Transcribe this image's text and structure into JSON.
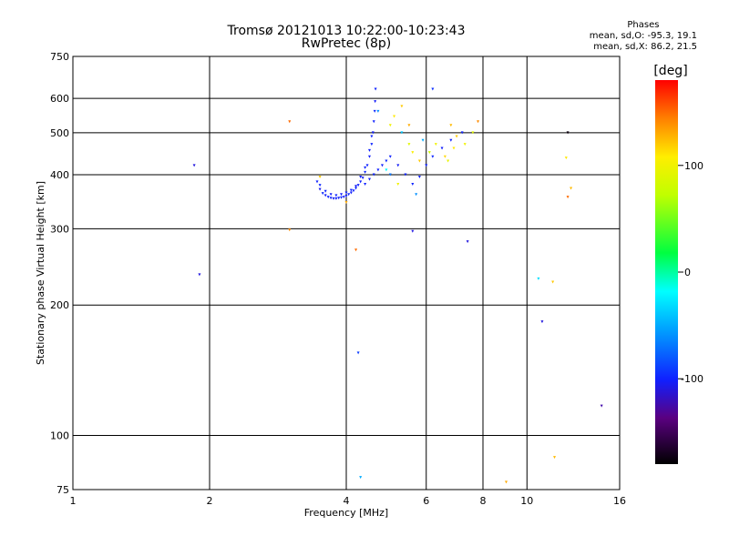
{
  "chart_data": {
    "type": "scatter",
    "title": "Tromsø 20121013 10:22:00-10:23:43",
    "subtitle": "RwPretec (8p)",
    "xlabel": "Frequency [MHz]",
    "ylabel": "Stationary phase Virtual Height [km]",
    "x_scale": "log",
    "y_scale": "log",
    "xlim": [
      1,
      16
    ],
    "ylim": [
      75,
      750
    ],
    "x_ticks": [
      1,
      2,
      4,
      6,
      8,
      10,
      16
    ],
    "y_ticks": [
      75,
      100,
      200,
      300,
      400,
      500,
      600,
      750
    ],
    "grid": true,
    "stats": {
      "heading": "Phases",
      "line_o": "mean, sd,O: -95.3, 19.1",
      "line_x": "mean, sd,X: 86.2, 21.5"
    },
    "colorbar": {
      "label": "[deg]",
      "ticks": [
        100,
        0,
        -100
      ],
      "range": [
        -180,
        180
      ]
    },
    "points": [
      {
        "x": 3.45,
        "y": 385,
        "p": -100
      },
      {
        "x": 3.5,
        "y": 370,
        "p": -105
      },
      {
        "x": 3.55,
        "y": 362,
        "p": -98
      },
      {
        "x": 3.6,
        "y": 358,
        "p": -102
      },
      {
        "x": 3.65,
        "y": 355,
        "p": -100
      },
      {
        "x": 3.7,
        "y": 353,
        "p": -99
      },
      {
        "x": 3.75,
        "y": 352,
        "p": -104
      },
      {
        "x": 3.8,
        "y": 352,
        "p": -101
      },
      {
        "x": 3.85,
        "y": 353,
        "p": -100
      },
      {
        "x": 3.9,
        "y": 354,
        "p": -97
      },
      {
        "x": 3.95,
        "y": 355,
        "p": -103
      },
      {
        "x": 4.0,
        "y": 357,
        "p": -100
      },
      {
        "x": 4.05,
        "y": 360,
        "p": -98
      },
      {
        "x": 4.1,
        "y": 363,
        "p": -102
      },
      {
        "x": 4.15,
        "y": 367,
        "p": -100
      },
      {
        "x": 4.2,
        "y": 372,
        "p": -99
      },
      {
        "x": 4.25,
        "y": 378,
        "p": -101
      },
      {
        "x": 4.3,
        "y": 385,
        "p": -100
      },
      {
        "x": 4.35,
        "y": 393,
        "p": -103
      },
      {
        "x": 4.4,
        "y": 405,
        "p": -98
      },
      {
        "x": 4.45,
        "y": 420,
        "p": -100
      },
      {
        "x": 4.5,
        "y": 440,
        "p": -102
      },
      {
        "x": 4.55,
        "y": 470,
        "p": -99
      },
      {
        "x": 4.58,
        "y": 500,
        "p": -100
      },
      {
        "x": 4.6,
        "y": 530,
        "p": -101
      },
      {
        "x": 4.62,
        "y": 560,
        "p": -98
      },
      {
        "x": 4.63,
        "y": 590,
        "p": -103
      },
      {
        "x": 4.64,
        "y": 630,
        "p": -100
      },
      {
        "x": 3.5,
        "y": 378,
        "p": -97
      },
      {
        "x": 3.6,
        "y": 366,
        "p": -100
      },
      {
        "x": 3.7,
        "y": 360,
        "p": -102
      },
      {
        "x": 3.8,
        "y": 358,
        "p": -99
      },
      {
        "x": 3.9,
        "y": 360,
        "p": -101
      },
      {
        "x": 4.0,
        "y": 363,
        "p": -100
      },
      {
        "x": 4.1,
        "y": 368,
        "p": -98
      },
      {
        "x": 4.2,
        "y": 376,
        "p": -103
      },
      {
        "x": 4.3,
        "y": 395,
        "p": -100
      },
      {
        "x": 4.4,
        "y": 415,
        "p": -99
      },
      {
        "x": 4.5,
        "y": 455,
        "p": -101
      },
      {
        "x": 4.55,
        "y": 490,
        "p": -100
      },
      {
        "x": 4.4,
        "y": 380,
        "p": -100
      },
      {
        "x": 4.5,
        "y": 390,
        "p": -102
      },
      {
        "x": 4.6,
        "y": 400,
        "p": -99
      },
      {
        "x": 4.7,
        "y": 410,
        "p": -100
      },
      {
        "x": 4.8,
        "y": 420,
        "p": -101
      },
      {
        "x": 4.9,
        "y": 430,
        "p": -98
      },
      {
        "x": 5.0,
        "y": 440,
        "p": -100
      },
      {
        "x": 5.2,
        "y": 420,
        "p": -103
      },
      {
        "x": 5.4,
        "y": 400,
        "p": -100
      },
      {
        "x": 5.6,
        "y": 380,
        "p": -99
      },
      {
        "x": 5.8,
        "y": 395,
        "p": -101
      },
      {
        "x": 6.0,
        "y": 420,
        "p": -100
      },
      {
        "x": 6.2,
        "y": 440,
        "p": -98
      },
      {
        "x": 6.5,
        "y": 460,
        "p": -102
      },
      {
        "x": 6.8,
        "y": 480,
        "p": -100
      },
      {
        "x": 7.2,
        "y": 500,
        "p": -99
      },
      {
        "x": 4.7,
        "y": 560,
        "p": -60
      },
      {
        "x": 5.0,
        "y": 520,
        "p": 100
      },
      {
        "x": 5.1,
        "y": 545,
        "p": 110
      },
      {
        "x": 5.3,
        "y": 500,
        "p": -40
      },
      {
        "x": 5.5,
        "y": 470,
        "p": 90
      },
      {
        "x": 5.6,
        "y": 450,
        "p": 105
      },
      {
        "x": 5.8,
        "y": 430,
        "p": 120
      },
      {
        "x": 5.9,
        "y": 480,
        "p": -50
      },
      {
        "x": 6.1,
        "y": 450,
        "p": 80
      },
      {
        "x": 6.3,
        "y": 470,
        "p": 100
      },
      {
        "x": 6.6,
        "y": 440,
        "p": 115
      },
      {
        "x": 6.7,
        "y": 430,
        "p": 95
      },
      {
        "x": 6.9,
        "y": 460,
        "p": 110
      },
      {
        "x": 7.0,
        "y": 490,
        "p": 120
      },
      {
        "x": 7.3,
        "y": 470,
        "p": 100
      },
      {
        "x": 7.6,
        "y": 500,
        "p": 90
      },
      {
        "x": 5.0,
        "y": 400,
        "p": -70
      },
      {
        "x": 5.2,
        "y": 380,
        "p": 100
      },
      {
        "x": 5.5,
        "y": 520,
        "p": 130
      },
      {
        "x": 6.8,
        "y": 520,
        "p": 125
      },
      {
        "x": 7.8,
        "y": 530,
        "p": 140
      },
      {
        "x": 5.3,
        "y": 575,
        "p": 120
      },
      {
        "x": 4.9,
        "y": 410,
        "p": -20
      },
      {
        "x": 5.7,
        "y": 360,
        "p": -60
      },
      {
        "x": 6.2,
        "y": 630,
        "p": -95
      },
      {
        "x": 3.5,
        "y": 395,
        "p": 120
      },
      {
        "x": 3.0,
        "y": 530,
        "p": 150
      },
      {
        "x": 4.0,
        "y": 345,
        "p": 130
      },
      {
        "x": 1.85,
        "y": 420,
        "p": -110
      },
      {
        "x": 1.9,
        "y": 235,
        "p": -110
      },
      {
        "x": 3.0,
        "y": 298,
        "p": 140
      },
      {
        "x": 4.2,
        "y": 268,
        "p": 150
      },
      {
        "x": 5.6,
        "y": 296,
        "p": -110
      },
      {
        "x": 7.4,
        "y": 280,
        "p": -110
      },
      {
        "x": 4.25,
        "y": 155,
        "p": -90
      },
      {
        "x": 4.3,
        "y": 80,
        "p": -50
      },
      {
        "x": 9.0,
        "y": 78,
        "p": 130
      },
      {
        "x": 11.5,
        "y": 89,
        "p": 125
      },
      {
        "x": 10.8,
        "y": 183,
        "p": -110
      },
      {
        "x": 10.6,
        "y": 230,
        "p": -30
      },
      {
        "x": 11.4,
        "y": 226,
        "p": 120
      },
      {
        "x": 12.2,
        "y": 437,
        "p": 110
      },
      {
        "x": 12.3,
        "y": 355,
        "p": 150
      },
      {
        "x": 12.5,
        "y": 372,
        "p": 125
      },
      {
        "x": 12.3,
        "y": 500,
        "p": -175
      },
      {
        "x": 14.6,
        "y": 117,
        "p": -125
      }
    ]
  }
}
